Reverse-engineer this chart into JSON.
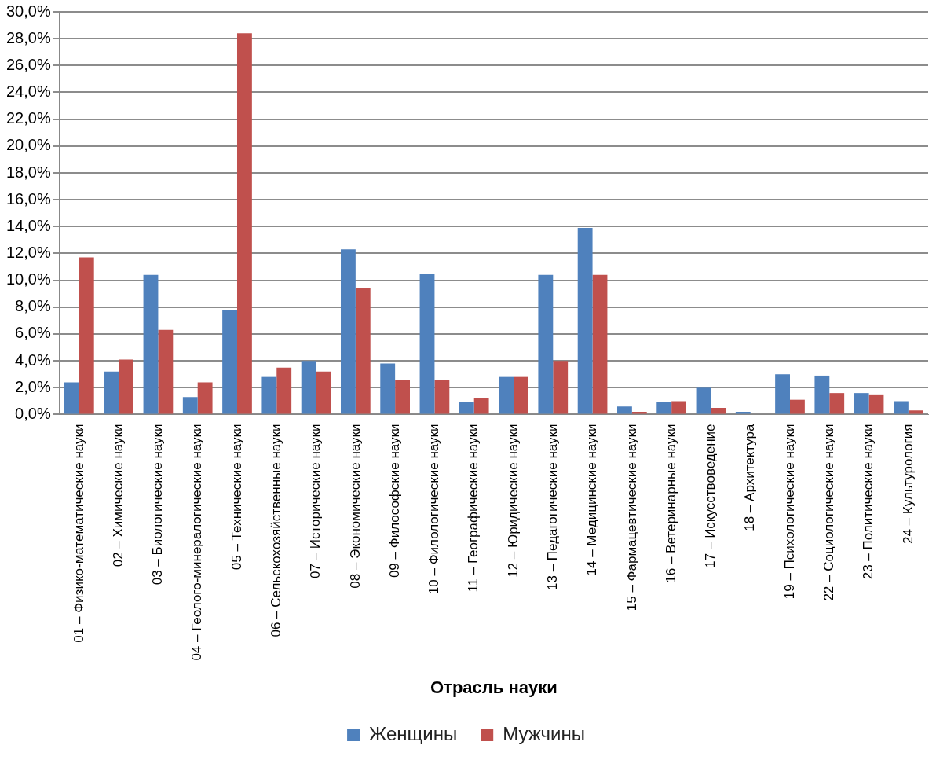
{
  "chart_data": {
    "type": "bar",
    "xlabel": "Отрасль науки",
    "categories": [
      "01 – Физико-математические науки",
      "02 – Химические науки",
      "03 – Биологические науки",
      "04 – Геолого-минералогические науки",
      "05 – Технические науки",
      "06 – Сельскохозяйственные науки",
      "07 – Исторические науки",
      "08 – Экономические науки",
      "09 – Философские науки",
      "10 – Филологические науки",
      "11 – Географические науки",
      "12 – Юридические науки",
      "13 – Педагогические науки",
      "14 – Медицинские науки",
      "15 – Фармацевтические науки",
      "16 – Ветеринарные науки",
      "17 – Искусствоведение",
      "18 – Архитектура",
      "19 – Психологические науки",
      "22 – Социологические науки",
      "23 – Политические науки",
      "24 – Культурология"
    ],
    "series": [
      {
        "name": "Женщины",
        "color": "#4f81bd",
        "values": [
          2.4,
          3.2,
          10.4,
          1.3,
          7.8,
          2.8,
          4.0,
          12.3,
          3.8,
          10.5,
          0.9,
          2.8,
          10.4,
          13.9,
          0.6,
          0.9,
          2.0,
          0.2,
          3.0,
          2.9,
          1.6,
          1.0
        ]
      },
      {
        "name": "Мужчины",
        "color": "#c0504d",
        "values": [
          11.7,
          4.1,
          6.3,
          2.4,
          28.4,
          3.5,
          3.2,
          9.4,
          2.6,
          2.6,
          1.2,
          2.8,
          4.0,
          10.4,
          0.2,
          1.0,
          0.5,
          null,
          1.1,
          1.6,
          1.5,
          0.3
        ]
      }
    ],
    "ylim": [
      0,
      30
    ],
    "yticks": [
      {
        "value": 0,
        "label": "0,0%"
      },
      {
        "value": 2,
        "label": "2,0%"
      },
      {
        "value": 4,
        "label": "4,0%"
      },
      {
        "value": 6,
        "label": "6,0%"
      },
      {
        "value": 8,
        "label": "8,0%"
      },
      {
        "value": 10,
        "label": "10,0%"
      },
      {
        "value": 12,
        "label": "12,0%"
      },
      {
        "value": 14,
        "label": "14,0%"
      },
      {
        "value": 16,
        "label": "16,0%"
      },
      {
        "value": 18,
        "label": "18,0%"
      },
      {
        "value": 20,
        "label": "20,0%"
      },
      {
        "value": 22,
        "label": "22,0%"
      },
      {
        "value": 24,
        "label": "24,0%"
      },
      {
        "value": 26,
        "label": "26,0%"
      },
      {
        "value": 28,
        "label": "28,0%"
      },
      {
        "value": 30,
        "label": "30,0%"
      }
    ],
    "grid": "y",
    "legend": "bottom"
  }
}
